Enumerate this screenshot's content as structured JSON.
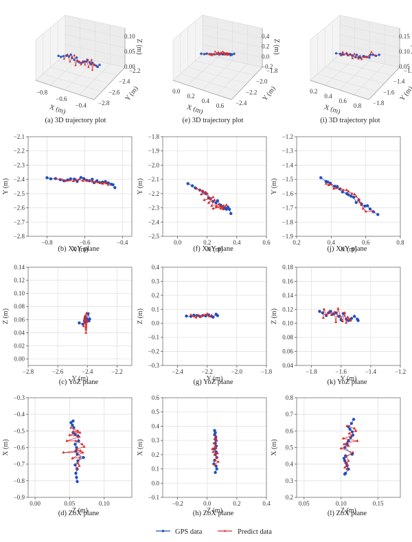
{
  "colors": {
    "gps": "#1f4fbf",
    "predict": "#d42a2a",
    "grid": "#e0e0e0",
    "frame": "#888888",
    "pane": "#f2f2f2"
  },
  "legend": {
    "gps_label": "GPS data",
    "predict_label": "Predict data"
  },
  "chart_data": [
    {
      "id": "a",
      "type": "scatter3d",
      "title": "(a) 3D trajectory plot",
      "xlabel": "X (m)",
      "ylabel": "Y (m)",
      "zlabel": "Z (m)",
      "xticks": [
        "−0.8",
        "−0.6",
        "−0.4"
      ],
      "yticks": [
        "−2.2",
        "−2.4",
        "−2.6",
        "−2.8"
      ],
      "zticks": [
        "0.00",
        "0.05",
        "0.10"
      ],
      "xlim": [
        -0.9,
        -0.35
      ],
      "ylim": [
        -2.8,
        -2.1
      ],
      "zlim": [
        0.0,
        0.12
      ]
    },
    {
      "id": "e",
      "type": "scatter3d",
      "title": "(e) 3D trajectory plot",
      "xlabel": "X (m)",
      "ylabel": "Y (m)",
      "zlabel": "Z (m)",
      "xticks": [
        "0.0",
        "0.2",
        "0.4",
        "0.6"
      ],
      "yticks": [
        "−1.8",
        "−2.0",
        "−2.2",
        "−2.4"
      ],
      "zticks": [
        "−0.2",
        "0.0",
        "0.2",
        "0.4"
      ],
      "xlim": [
        -0.1,
        0.6
      ],
      "ylim": [
        -2.5,
        -1.8
      ],
      "zlim": [
        -0.3,
        0.4
      ]
    },
    {
      "id": "i",
      "type": "scatter3d",
      "title": "(i) 3D trajectory plot",
      "xlabel": "X (m)",
      "ylabel": "Y (m)",
      "zlabel": "Z (m)",
      "xticks": [
        "0.2",
        "0.4",
        "0.6",
        "0.8"
      ],
      "yticks": [
        "−1.2",
        "−1.4",
        "−1.6",
        "−1.8"
      ],
      "zticks": [
        "0.05",
        "0.10",
        "0.15"
      ],
      "xlim": [
        0.2,
        0.8
      ],
      "ylim": [
        -1.9,
        -1.2
      ],
      "zlim": [
        0.04,
        0.18
      ]
    },
    {
      "id": "b",
      "type": "line",
      "title": "(b) XoY plane",
      "xlabel": "X (m)",
      "ylabel": "Y (m)",
      "xlim": [
        -0.9,
        -0.35
      ],
      "ylim": [
        -2.8,
        -2.1
      ],
      "xticks": [
        -0.8,
        -0.6,
        -0.4
      ],
      "yticks": [
        -2.8,
        -2.7,
        -2.6,
        -2.5,
        -2.4,
        -2.3,
        -2.2,
        -2.1
      ],
      "tick_decimals": 1,
      "grid": true,
      "series": [
        {
          "name": "GPS data",
          "x": [
            -0.8,
            -0.78,
            -0.755,
            -0.73,
            -0.71,
            -0.69,
            -0.675,
            -0.655,
            -0.64,
            -0.62,
            -0.605,
            -0.59,
            -0.575,
            -0.56,
            -0.55,
            -0.535,
            -0.52,
            -0.505,
            -0.49,
            -0.475,
            -0.46,
            -0.45,
            -0.44
          ],
          "y": [
            -2.388,
            -2.396,
            -2.394,
            -2.402,
            -2.41,
            -2.404,
            -2.396,
            -2.398,
            -2.415,
            -2.387,
            -2.394,
            -2.406,
            -2.41,
            -2.399,
            -2.423,
            -2.41,
            -2.422,
            -2.419,
            -2.415,
            -2.425,
            -2.434,
            -2.437,
            -2.458
          ]
        },
        {
          "name": "Predict data",
          "x": [
            -0.75,
            -0.72,
            -0.7,
            -0.68,
            -0.66,
            -0.645,
            -0.63,
            -0.61,
            -0.595,
            -0.58,
            -0.56,
            -0.545,
            -0.53,
            -0.515,
            -0.505,
            -0.495,
            -0.485,
            -0.475
          ],
          "y": [
            -2.395,
            -2.403,
            -2.41,
            -2.406,
            -2.412,
            -2.404,
            -2.4,
            -2.41,
            -2.405,
            -2.41,
            -2.415,
            -2.418,
            -2.42,
            -2.425,
            -2.43,
            -2.423,
            -2.428,
            -2.438
          ]
        }
      ]
    },
    {
      "id": "f",
      "type": "line",
      "title": "(f) XoY plane",
      "xlabel": "X (m)",
      "ylabel": "Y (m)",
      "xlim": [
        -0.1,
        0.6
      ],
      "ylim": [
        -2.5,
        -1.8
      ],
      "xticks": [
        0.0,
        0.2,
        0.4,
        0.6
      ],
      "yticks": [
        -2.5,
        -2.4,
        -2.3,
        -2.2,
        -2.1,
        -2.0,
        -1.9,
        -1.8
      ],
      "tick_decimals": 1,
      "grid": true,
      "series": [
        {
          "name": "GPS data",
          "x": [
            0.07,
            0.1,
            0.12,
            0.15,
            0.17,
            0.19,
            0.21,
            0.22,
            0.24,
            0.26,
            0.27,
            0.29,
            0.3,
            0.31,
            0.32,
            0.33,
            0.34,
            0.35,
            0.36
          ],
          "y": [
            -2.13,
            -2.145,
            -2.16,
            -2.175,
            -2.185,
            -2.2,
            -2.23,
            -2.235,
            -2.255,
            -2.265,
            -2.25,
            -2.28,
            -2.29,
            -2.305,
            -2.3,
            -2.31,
            -2.295,
            -2.31,
            -2.34
          ]
        },
        {
          "name": "Predict data",
          "x": [
            0.13,
            0.15,
            0.17,
            0.19,
            0.16,
            0.2,
            0.22,
            0.18,
            0.24,
            0.21,
            0.25,
            0.23,
            0.28,
            0.26,
            0.31,
            0.24,
            0.3,
            0.33,
            0.31,
            0.29
          ],
          "y": [
            -2.165,
            -2.175,
            -2.18,
            -2.19,
            -2.205,
            -2.2,
            -2.235,
            -2.245,
            -2.225,
            -2.265,
            -2.245,
            -2.285,
            -2.275,
            -2.29,
            -2.285,
            -2.305,
            -2.295,
            -2.28,
            -2.31,
            -2.305
          ]
        }
      ]
    },
    {
      "id": "j",
      "type": "line",
      "title": "(j) XoY plane",
      "xlabel": "X (m)",
      "ylabel": "Y (m)",
      "xlim": [
        0.2,
        0.8
      ],
      "ylim": [
        -1.9,
        -1.2
      ],
      "xticks": [
        0.2,
        0.4,
        0.6,
        0.8
      ],
      "yticks": [
        -1.9,
        -1.8,
        -1.7,
        -1.6,
        -1.5,
        -1.4,
        -1.3,
        -1.2
      ],
      "tick_decimals": 1,
      "grid": true,
      "series": [
        {
          "name": "GPS data",
          "x": [
            0.34,
            0.37,
            0.38,
            0.395,
            0.42,
            0.435,
            0.45,
            0.465,
            0.49,
            0.5,
            0.515,
            0.53,
            0.545,
            0.56,
            0.575,
            0.595,
            0.61,
            0.625,
            0.645,
            0.67
          ],
          "y": [
            -1.488,
            -1.515,
            -1.518,
            -1.527,
            -1.548,
            -1.55,
            -1.568,
            -1.588,
            -1.6,
            -1.608,
            -1.618,
            -1.625,
            -1.662,
            -1.645,
            -1.672,
            -1.688,
            -1.685,
            -1.708,
            -1.728,
            -1.747
          ]
        },
        {
          "name": "Predict data",
          "x": [
            0.37,
            0.385,
            0.4,
            0.415,
            0.43,
            0.455,
            0.47,
            0.49,
            0.5,
            0.52,
            0.535,
            0.545,
            0.56,
            0.565,
            0.575,
            0.585,
            0.6,
            0.64
          ],
          "y": [
            -1.53,
            -1.54,
            -1.535,
            -1.565,
            -1.56,
            -1.565,
            -1.575,
            -1.575,
            -1.585,
            -1.6,
            -1.605,
            -1.62,
            -1.64,
            -1.66,
            -1.68,
            -1.705,
            -1.725,
            -1.725
          ]
        }
      ]
    },
    {
      "id": "c",
      "type": "line",
      "title": "(c) YoZ plane",
      "xlabel": "Y (m)",
      "ylabel": "Z (m)",
      "xlim": [
        -2.8,
        -2.1
      ],
      "ylim": [
        -0.01,
        0.14
      ],
      "xticks": [
        -2.8,
        -2.6,
        -2.4,
        -2.2
      ],
      "yticks": [
        0.0,
        0.02,
        0.04,
        0.06,
        0.08,
        0.1,
        0.12,
        0.14
      ],
      "tick_decimals": 2,
      "x_tick_decimals": 1,
      "grid": true,
      "series": [
        {
          "name": "GPS data",
          "x": [
            -2.455,
            -2.43,
            -2.42,
            -2.41,
            -2.4,
            -2.395,
            -2.385,
            -2.405,
            -2.415,
            -2.39
          ],
          "y": [
            0.055,
            0.053,
            0.058,
            0.062,
            0.06,
            0.069,
            0.061,
            0.057,
            0.064,
            0.058
          ]
        },
        {
          "name": "Predict data",
          "x": [
            -2.425,
            -2.415,
            -2.41,
            -2.42,
            -2.405,
            -2.41,
            -2.4,
            -2.415,
            -2.41,
            -2.42
          ],
          "y": [
            0.05,
            0.066,
            0.045,
            0.062,
            0.07,
            0.04,
            0.058,
            0.055,
            0.048,
            0.06
          ]
        }
      ]
    },
    {
      "id": "g",
      "type": "line",
      "title": "(g) YoZ plane",
      "xlabel": "Y (m)",
      "ylabel": "Z (m)",
      "xlim": [
        -2.5,
        -1.8
      ],
      "ylim": [
        -0.3,
        0.4
      ],
      "xticks": [
        -2.4,
        -2.2,
        -2.0,
        -1.8
      ],
      "yticks": [
        -0.3,
        -0.2,
        -0.1,
        0.0,
        0.1,
        0.2,
        0.3,
        0.4
      ],
      "tick_decimals": 1,
      "grid": true,
      "series": [
        {
          "name": "GPS data",
          "x": [
            -2.34,
            -2.31,
            -2.29,
            -2.27,
            -2.25,
            -2.23,
            -2.21,
            -2.19,
            -2.17,
            -2.16,
            -2.14,
            -2.13
          ],
          "y": [
            0.052,
            0.05,
            0.058,
            0.055,
            0.05,
            0.056,
            0.053,
            0.06,
            0.05,
            0.045,
            0.065,
            0.055
          ]
        },
        {
          "name": "Predict data",
          "x": [
            -2.31,
            -2.29,
            -2.275,
            -2.26,
            -2.245,
            -2.23,
            -2.215,
            -2.2,
            -2.185,
            -2.17
          ],
          "y": [
            0.06,
            0.05,
            0.042,
            0.058,
            0.045,
            0.055,
            0.06,
            0.068,
            0.05,
            0.058
          ]
        }
      ]
    },
    {
      "id": "k",
      "type": "line",
      "title": "(k) YoZ plane",
      "xlabel": "Y (m)",
      "ylabel": "Z (m)",
      "xlim": [
        -1.9,
        -1.2
      ],
      "ylim": [
        0.04,
        0.18
      ],
      "xticks": [
        -1.8,
        -1.6,
        -1.4,
        -1.2
      ],
      "yticks": [
        0.04,
        0.06,
        0.08,
        0.1,
        0.12,
        0.14,
        0.16,
        0.18
      ],
      "tick_decimals": 2,
      "x_tick_decimals": 1,
      "grid": true,
      "series": [
        {
          "name": "GPS data",
          "x": [
            -1.745,
            -1.725,
            -1.7,
            -1.685,
            -1.67,
            -1.655,
            -1.635,
            -1.615,
            -1.6,
            -1.585,
            -1.565,
            -1.55,
            -1.53,
            -1.51,
            -1.49,
            -1.485
          ],
          "y": [
            0.117,
            0.115,
            0.111,
            0.115,
            0.117,
            0.113,
            0.115,
            0.11,
            0.105,
            0.114,
            0.106,
            0.104,
            0.107,
            0.11,
            0.106,
            0.104
          ]
        },
        {
          "name": "Predict data",
          "x": [
            -1.72,
            -1.715,
            -1.7,
            -1.68,
            -1.665,
            -1.645,
            -1.635,
            -1.62,
            -1.605,
            -1.59,
            -1.575,
            -1.565,
            -1.555,
            -1.545,
            -1.535
          ],
          "y": [
            0.108,
            0.12,
            0.112,
            0.117,
            0.112,
            0.116,
            0.102,
            0.121,
            0.11,
            0.103,
            0.115,
            0.101,
            0.109,
            0.106,
            0.104
          ]
        }
      ]
    },
    {
      "id": "d",
      "type": "line",
      "title": "(d) ZoX plane",
      "xlabel": "Z (m)",
      "ylabel": "X (m)",
      "xlim": [
        -0.01,
        0.14
      ],
      "ylim": [
        -0.9,
        -0.3
      ],
      "xticks": [
        0.0,
        0.05,
        0.1
      ],
      "yticks": [
        -0.9,
        -0.8,
        -0.7,
        -0.6,
        -0.5,
        -0.4,
        -0.3
      ],
      "tick_decimals": 1,
      "x_tick_decimals": 2,
      "grid": true,
      "series": [
        {
          "name": "GPS data",
          "x": [
            0.055,
            0.052,
            0.054,
            0.056,
            0.055,
            0.058,
            0.062,
            0.063,
            0.058,
            0.06,
            0.059,
            0.061,
            0.07,
            0.062,
            0.058,
            0.061,
            0.059,
            0.06,
            0.061
          ],
          "y": [
            -0.44,
            -0.45,
            -0.465,
            -0.48,
            -0.51,
            -0.52,
            -0.53,
            -0.56,
            -0.58,
            -0.6,
            -0.62,
            -0.64,
            -0.66,
            -0.68,
            -0.705,
            -0.73,
            -0.755,
            -0.78,
            -0.805
          ]
        },
        {
          "name": "Predict data",
          "x": [
            0.052,
            0.062,
            0.055,
            0.065,
            0.05,
            0.064,
            0.046,
            0.059,
            0.068,
            0.071,
            0.06,
            0.066,
            0.041,
            0.069,
            0.054,
            0.065,
            0.062,
            0.064,
            0.06
          ],
          "y": [
            -0.48,
            -0.5,
            -0.505,
            -0.51,
            -0.525,
            -0.535,
            -0.56,
            -0.56,
            -0.58,
            -0.595,
            -0.61,
            -0.62,
            -0.63,
            -0.63,
            -0.665,
            -0.66,
            -0.695,
            -0.71,
            -0.725
          ]
        }
      ]
    },
    {
      "id": "h",
      "type": "line",
      "title": "(h) ZoX plane",
      "xlabel": "Z (m)",
      "ylabel": "X (m)",
      "xlim": [
        -0.3,
        0.4
      ],
      "ylim": [
        -0.1,
        0.6
      ],
      "xticks": [
        -0.2,
        0.0,
        0.2,
        0.4
      ],
      "yticks": [
        -0.1,
        0.0,
        0.1,
        0.2,
        0.3,
        0.4,
        0.5,
        0.6
      ],
      "tick_decimals": 1,
      "grid": true,
      "series": [
        {
          "name": "GPS data",
          "x": [
            0.05,
            0.055,
            0.05,
            0.058,
            0.06,
            0.055,
            0.062,
            0.05,
            0.06,
            0.055,
            0.065,
            0.05,
            0.045,
            0.06,
            0.065,
            0.055
          ],
          "y": [
            0.37,
            0.355,
            0.34,
            0.32,
            0.3,
            0.28,
            0.26,
            0.24,
            0.22,
            0.2,
            0.18,
            0.16,
            0.135,
            0.12,
            0.1,
            0.075
          ]
        },
        {
          "name": "Predict data",
          "x": [
            0.06,
            0.05,
            0.065,
            0.045,
            0.055,
            0.035,
            0.06,
            0.04,
            0.07,
            0.05,
            0.065,
            0.055,
            0.075,
            0.05
          ],
          "y": [
            0.33,
            0.31,
            0.3,
            0.28,
            0.26,
            0.24,
            0.245,
            0.22,
            0.21,
            0.2,
            0.18,
            0.16,
            0.15,
            0.13
          ]
        }
      ]
    },
    {
      "id": "l",
      "type": "line",
      "title": "(l) ZoX plane",
      "xlabel": "Z (m)",
      "ylabel": "X (m)",
      "xlim": [
        0.04,
        0.18
      ],
      "ylim": [
        0.2,
        0.8
      ],
      "xticks": [
        0.05,
        0.1,
        0.15
      ],
      "yticks": [
        0.2,
        0.3,
        0.4,
        0.5,
        0.6,
        0.7,
        0.8
      ],
      "tick_decimals": 1,
      "x_tick_decimals": 2,
      "grid": true,
      "series": [
        {
          "name": "GPS data",
          "x": [
            0.117,
            0.114,
            0.11,
            0.112,
            0.115,
            0.116,
            0.113,
            0.11,
            0.108,
            0.105,
            0.115,
            0.106,
            0.104,
            0.105,
            0.107,
            0.108,
            0.11,
            0.106,
            0.105
          ],
          "y": [
            0.67,
            0.645,
            0.625,
            0.61,
            0.595,
            0.575,
            0.56,
            0.54,
            0.52,
            0.5,
            0.46,
            0.45,
            0.435,
            0.42,
            0.405,
            0.39,
            0.37,
            0.345,
            0.34
          ]
        },
        {
          "name": "Predict data",
          "x": [
            0.108,
            0.118,
            0.12,
            0.111,
            0.114,
            0.103,
            0.122,
            0.108,
            0.104,
            0.11,
            0.1,
            0.116,
            0.107,
            0.11,
            0.106,
            0.109,
            0.105,
            0.108
          ],
          "y": [
            0.63,
            0.615,
            0.6,
            0.585,
            0.57,
            0.555,
            0.54,
            0.53,
            0.52,
            0.51,
            0.495,
            0.47,
            0.445,
            0.42,
            0.41,
            0.395,
            0.38,
            0.37
          ]
        }
      ]
    }
  ]
}
